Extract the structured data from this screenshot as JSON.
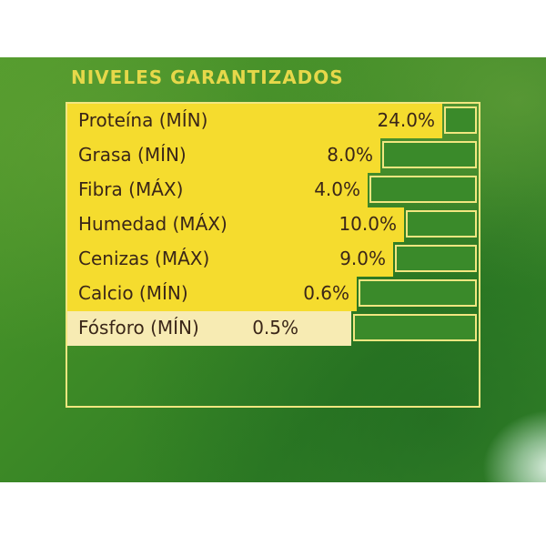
{
  "title": "NIVELES GARANTIZADOS",
  "colors": {
    "panel_green": "#3a8a2a",
    "title_yellow": "#e6d84a",
    "bar_yellow": "#f5dc2e",
    "bar_cream": "#f7ebb3",
    "text_brown": "#3a2618"
  },
  "rows": [
    {
      "label": "Proteína (MÍN)",
      "value": "24.0%"
    },
    {
      "label": "Grasa (MÍN)",
      "value": "8.0%"
    },
    {
      "label": "Fibra (MÁX)",
      "value": "4.0%"
    },
    {
      "label": "Humedad (MÁX)",
      "value": "10.0%"
    },
    {
      "label": "Cenizas (MÁX)",
      "value": "9.0%"
    },
    {
      "label": "Calcio (MÍN)",
      "value": "0.6%"
    },
    {
      "label": "Fósforo (MÍN)",
      "value": "0.5%"
    }
  ]
}
